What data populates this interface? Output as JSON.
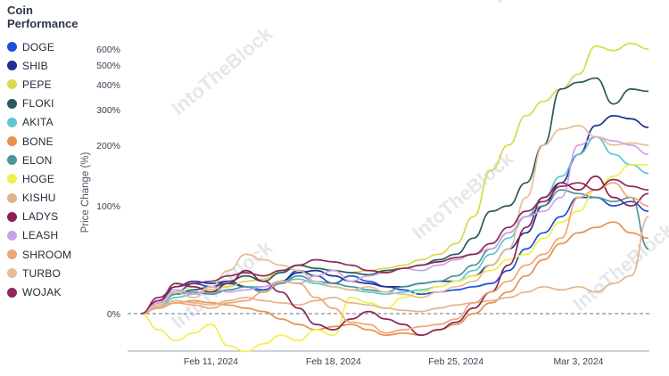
{
  "legend": {
    "title": "Coin Performance"
  },
  "watermark": "IntoTheBlock",
  "chart_data": {
    "type": "line",
    "xlabel": "",
    "ylabel": "Price Change (%)",
    "x_ticks": [
      "Feb 11, 2024",
      "Feb 18, 2024",
      "Feb 25, 2024",
      "Mar 3, 2024"
    ],
    "y_ticks": [
      "0%",
      "100%",
      "200%",
      "300%",
      "400%",
      "500%",
      "600%"
    ],
    "x_range": [
      "2024-02-07",
      "2024-03-07"
    ],
    "zero_line": "dashed",
    "grid": false,
    "legend_position": "left",
    "series": [
      {
        "name": "DOGE",
        "color": "#1d4ed8",
        "values": [
          0,
          8,
          20,
          28,
          25,
          28,
          25,
          22,
          30,
          40,
          35,
          28,
          35,
          30,
          25,
          22,
          18,
          20,
          22,
          25,
          28,
          40,
          60,
          75,
          90,
          110,
          110,
          100,
          105,
          95
        ]
      },
      {
        "name": "SHIB",
        "color": "#1e2f8f",
        "values": [
          0,
          10,
          25,
          30,
          28,
          30,
          25,
          20,
          30,
          38,
          40,
          35,
          30,
          28,
          25,
          25,
          28,
          30,
          30,
          35,
          45,
          60,
          75,
          100,
          130,
          180,
          250,
          280,
          270,
          245
        ]
      },
      {
        "name": "PEPE",
        "color": "#d9d94a",
        "values": [
          0,
          10,
          20,
          25,
          22,
          25,
          30,
          32,
          40,
          45,
          42,
          40,
          38,
          40,
          42,
          45,
          50,
          55,
          65,
          90,
          150,
          200,
          280,
          330,
          380,
          450,
          620,
          590,
          640,
          600
        ]
      },
      {
        "name": "FLOKI",
        "color": "#2b5a5a",
        "values": [
          0,
          8,
          18,
          22,
          25,
          30,
          35,
          30,
          38,
          45,
          42,
          40,
          38,
          36,
          40,
          42,
          45,
          50,
          55,
          70,
          95,
          100,
          130,
          200,
          380,
          410,
          430,
          320,
          380,
          370
        ]
      },
      {
        "name": "AKITA",
        "color": "#5cc8d0",
        "values": [
          0,
          6,
          15,
          18,
          20,
          22,
          25,
          25,
          30,
          32,
          28,
          25,
          22,
          20,
          18,
          20,
          22,
          25,
          30,
          40,
          55,
          70,
          90,
          110,
          140,
          180,
          220,
          180,
          160,
          145
        ]
      },
      {
        "name": "BONE",
        "color": "#e8914a",
        "values": [
          0,
          5,
          10,
          12,
          10,
          8,
          5,
          2,
          -5,
          -10,
          -15,
          -12,
          -10,
          -15,
          -20,
          -18,
          -20,
          -15,
          -10,
          0,
          10,
          20,
          35,
          50,
          65,
          75,
          80,
          85,
          75,
          70
        ]
      },
      {
        "name": "ELON",
        "color": "#4d9696",
        "values": [
          0,
          8,
          18,
          20,
          18,
          22,
          25,
          20,
          28,
          35,
          30,
          28,
          25,
          22,
          20,
          25,
          28,
          30,
          35,
          45,
          60,
          75,
          90,
          100,
          120,
          115,
          110,
          105,
          110,
          60
        ]
      },
      {
        "name": "HOGE",
        "color": "#f2ef4a",
        "values": [
          0,
          -15,
          -25,
          -18,
          -10,
          -30,
          -35,
          -28,
          -20,
          -25,
          -15,
          -20,
          15,
          10,
          5,
          15,
          20,
          25,
          30,
          35,
          40,
          50,
          55,
          70,
          85,
          95,
          120,
          140,
          160,
          160
        ]
      },
      {
        "name": "KISHU",
        "color": "#e3b48c",
        "values": [
          0,
          6,
          12,
          10,
          8,
          12,
          15,
          12,
          10,
          8,
          12,
          15,
          10,
          8,
          5,
          3,
          2,
          5,
          8,
          10,
          12,
          15,
          20,
          25,
          22,
          25,
          20,
          28,
          35,
          90
        ]
      },
      {
        "name": "LADYS",
        "color": "#8b2252",
        "values": [
          0,
          12,
          28,
          25,
          20,
          28,
          40,
          30,
          20,
          5,
          -10,
          -15,
          -5,
          2,
          -5,
          -10,
          -20,
          -15,
          -8,
          5,
          20,
          45,
          80,
          110,
          130,
          120,
          140,
          110,
          100,
          115
        ]
      },
      {
        "name": "LEASH",
        "color": "#c9a3e8",
        "values": [
          0,
          10,
          22,
          18,
          25,
          20,
          22,
          25,
          30,
          28,
          35,
          40,
          30,
          35,
          38,
          42,
          40,
          45,
          50,
          55,
          60,
          75,
          90,
          95,
          110,
          200,
          220,
          210,
          200,
          180
        ]
      },
      {
        "name": "SHROOM",
        "color": "#f0a575",
        "values": [
          0,
          5,
          10,
          8,
          5,
          10,
          12,
          20,
          30,
          28,
          15,
          5,
          -8,
          -10,
          -18,
          -15,
          -12,
          -10,
          -5,
          10,
          20,
          30,
          45,
          55,
          70,
          110,
          120,
          130,
          110,
          100
        ]
      },
      {
        "name": "TURBO",
        "color": "#e6bd97",
        "values": [
          0,
          8,
          20,
          15,
          25,
          40,
          55,
          50,
          45,
          40,
          30,
          25,
          22,
          25,
          20,
          18,
          15,
          20,
          25,
          30,
          45,
          60,
          110,
          200,
          240,
          250,
          220,
          200,
          205,
          200
        ]
      },
      {
        "name": "WOJAK",
        "color": "#8b2a5a",
        "values": [
          0,
          15,
          25,
          28,
          30,
          35,
          38,
          35,
          40,
          45,
          50,
          48,
          45,
          40,
          38,
          42,
          45,
          48,
          52,
          55,
          65,
          80,
          95,
          105,
          125,
          130,
          120,
          135,
          125,
          120
        ]
      }
    ]
  }
}
